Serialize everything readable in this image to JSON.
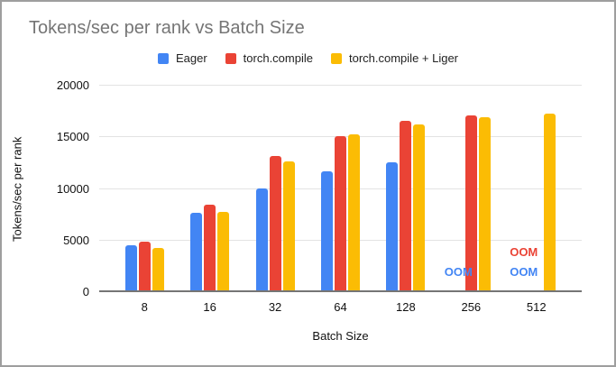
{
  "chart_data": {
    "type": "bar",
    "title": "Tokens/sec per rank vs Batch Size",
    "xlabel": "Batch Size",
    "ylabel": "Tokens/sec per rank",
    "categories": [
      "8",
      "16",
      "32",
      "64",
      "128",
      "256",
      "512"
    ],
    "series": [
      {
        "name": "Eager",
        "color": "#4285F4",
        "values": [
          4400,
          7600,
          10000,
          11600,
          12550,
          "OOM",
          "OOM"
        ]
      },
      {
        "name": "torch.compile",
        "color": "#EA4335",
        "values": [
          4750,
          8400,
          13100,
          15100,
          16600,
          17100,
          "OOM"
        ]
      },
      {
        "name": "torch.compile + Liger",
        "color": "#FBBC04",
        "values": [
          4100,
          7700,
          12600,
          15250,
          16200,
          16900,
          17300
        ]
      }
    ],
    "ylim": [
      0,
      20000
    ],
    "yticks": [
      0,
      5000,
      10000,
      15000,
      20000
    ],
    "grid": true,
    "legend_position": "top",
    "oom_label": "OOM",
    "colors": {
      "title_text": "#757575",
      "axis_text": "#111111",
      "gridline": "#e3e3e3",
      "baseline": "#757575",
      "frame_border": "#9e9e9e"
    }
  }
}
